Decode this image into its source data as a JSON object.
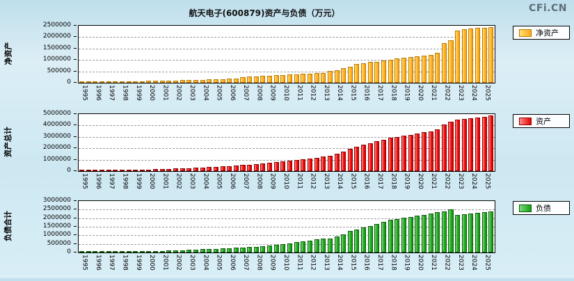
{
  "page": {
    "title": "航天电子(600879)资产与负债（万元）",
    "watermark": "CFi.CN"
  },
  "chart_data": [
    {
      "type": "bar",
      "id": "net-assets",
      "axis_label": "净资产",
      "legend": "净资产",
      "bar_color": "#FFA812",
      "bar_color_light": "#FFDE7A",
      "bar_border": "#B87800",
      "ylim": [
        0,
        2500000
      ],
      "yticks": [
        0,
        500000,
        1000000,
        1500000,
        2000000,
        2500000
      ],
      "bars_per_year": 2,
      "years": [
        "1995",
        "1996",
        "1997",
        "1998",
        "1999",
        "2000",
        "2001",
        "2002",
        "2003",
        "2004",
        "2005",
        "2006",
        "2007",
        "2008",
        "2009",
        "2010",
        "2011",
        "2012",
        "2013",
        "2014",
        "2015",
        "2016",
        "2017",
        "2018",
        "2019",
        "2020",
        "2021",
        "2022",
        "2023",
        "2024",
        "2025"
      ],
      "values": [
        28000,
        30000,
        32000,
        34000,
        36000,
        38000,
        40000,
        43000,
        46000,
        50000,
        85000,
        92000,
        96000,
        100000,
        104000,
        108000,
        113000,
        118000,
        128000,
        138000,
        148000,
        158000,
        170000,
        185000,
        230000,
        260000,
        280000,
        300000,
        312000,
        330000,
        342000,
        360000,
        372000,
        390000,
        402000,
        420000,
        440000,
        520000,
        560000,
        650000,
        700000,
        820000,
        850000,
        900000,
        930000,
        980000,
        1010000,
        1060000,
        1090000,
        1130000,
        1160000,
        1200000,
        1230000,
        1300000,
        1750000,
        1850000,
        2280000,
        2350000,
        2370000,
        2400000,
        2420000,
        2450000
      ]
    },
    {
      "type": "bar",
      "id": "total-assets",
      "axis_label": "资产总计",
      "legend": "资产",
      "bar_color": "#E80000",
      "bar_color_light": "#FF8A8A",
      "bar_border": "#8F0000",
      "ylim": [
        0,
        5000000
      ],
      "yticks": [
        0,
        1000000,
        2000000,
        3000000,
        4000000,
        5000000
      ],
      "bars_per_year": 2,
      "years": [
        "1995",
        "1996",
        "1997",
        "1998",
        "1999",
        "2000",
        "2001",
        "2002",
        "2003",
        "2004",
        "2005",
        "2006",
        "2007",
        "2008",
        "2009",
        "2010",
        "2011",
        "2012",
        "2013",
        "2014",
        "2015",
        "2016",
        "2017",
        "2018",
        "2019",
        "2020",
        "2021",
        "2022",
        "2023",
        "2024",
        "2025"
      ],
      "values": [
        60000,
        65000,
        70000,
        75000,
        80000,
        85000,
        90000,
        95000,
        100000,
        110000,
        150000,
        170000,
        190000,
        210000,
        230000,
        250000,
        270000,
        290000,
        315000,
        340000,
        370000,
        400000,
        430000,
        470000,
        520000,
        570000,
        620000,
        670000,
        720000,
        780000,
        840000,
        900000,
        960000,
        1030000,
        1100000,
        1180000,
        1260000,
        1350000,
        1500000,
        1700000,
        1950000,
        2150000,
        2300000,
        2450000,
        2600000,
        2750000,
        2900000,
        3000000,
        3100000,
        3200000,
        3300000,
        3400000,
        3500000,
        3650000,
        4100000,
        4300000,
        4500000,
        4600000,
        4650000,
        4700000,
        4750000,
        4850000
      ]
    },
    {
      "type": "bar",
      "id": "total-liabilities",
      "axis_label": "负债合计",
      "legend": "负债",
      "bar_color": "#13A013",
      "bar_color_light": "#7FD87F",
      "bar_border": "#0B5E0B",
      "ylim": [
        0,
        3000000
      ],
      "yticks": [
        0,
        500000,
        1000000,
        1500000,
        2000000,
        2500000,
        3000000
      ],
      "bars_per_year": 2,
      "years": [
        "1995",
        "1996",
        "1997",
        "1998",
        "1999",
        "2000",
        "2001",
        "2002",
        "2003",
        "2004",
        "2005",
        "2006",
        "2007",
        "2008",
        "2009",
        "2010",
        "2011",
        "2012",
        "2013",
        "2014",
        "2015",
        "2016",
        "2017",
        "2018",
        "2019",
        "2020",
        "2021",
        "2022",
        "2023",
        "2024",
        "2025"
      ],
      "values": [
        30000,
        33000,
        36000,
        39000,
        42000,
        45000,
        47000,
        50000,
        53000,
        58000,
        68000,
        78000,
        94000,
        110000,
        125000,
        140000,
        155000,
        170000,
        185000,
        200000,
        220000,
        240000,
        260000,
        285000,
        290000,
        310000,
        340000,
        370000,
        410000,
        450000,
        500000,
        540000,
        590000,
        640000,
        700000,
        760000,
        820000,
        830000,
        940000,
        1050000,
        1250000,
        1330000,
        1450000,
        1550000,
        1670000,
        1770000,
        1890000,
        1940000,
        2010000,
        2070000,
        2140000,
        2200000,
        2270000,
        2350000,
        2400000,
        2500000,
        2200000,
        2250000,
        2270000,
        2330000,
        2360000,
        2400000
      ]
    }
  ]
}
